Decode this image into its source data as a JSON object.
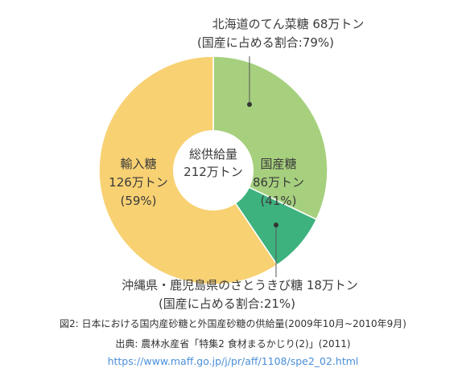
{
  "chart_data": {
    "type": "pie",
    "center_label": [
      "総供給量",
      "212万トン"
    ],
    "slices": [
      {
        "name": "北海道のてん菜糖",
        "value": 68,
        "unit": "万トン",
        "share_label": "(国産に占める割合:79%)",
        "color": "#a6d07e"
      },
      {
        "name": "沖縄県・鹿児島県のさとうきび糖",
        "value": 18,
        "unit": "万トン",
        "share_label": "(国産に占める割合:21%)",
        "color": "#3db27e"
      },
      {
        "name": "輸入糖",
        "value": 126,
        "unit": "万トン",
        "percent": "(59%)",
        "color": "#f8d173"
      }
    ],
    "group": {
      "name": "国産糖",
      "value": "86万トン",
      "percent": "(41%)"
    },
    "labels": {
      "hokkaido": "北海道のてん菜糖 68万トン",
      "hokkaido_share": "(国産に占める割合:79%)",
      "okinawa": "沖縄県・鹿児島県のさとうきび糖 18万トン",
      "okinawa_share": "(国産に占める割合:21%)",
      "import_name": "輸入糖",
      "import_value": "126万トン",
      "import_pct": "(59%)",
      "domestic_name": "国産糖",
      "domestic_value": "86万トン",
      "domestic_pct": "(41%)"
    }
  },
  "caption": {
    "figure": "図2: 日本における国内産砂糖と外国産砂糖の供給量(2009年10月~2010年9月)",
    "source": "出典: 農林水産省「特集2 食材まるかじり(2)」(2011)",
    "url": "https://www.maff.go.jp/j/pr/aff/1108/spe2_02.html"
  }
}
